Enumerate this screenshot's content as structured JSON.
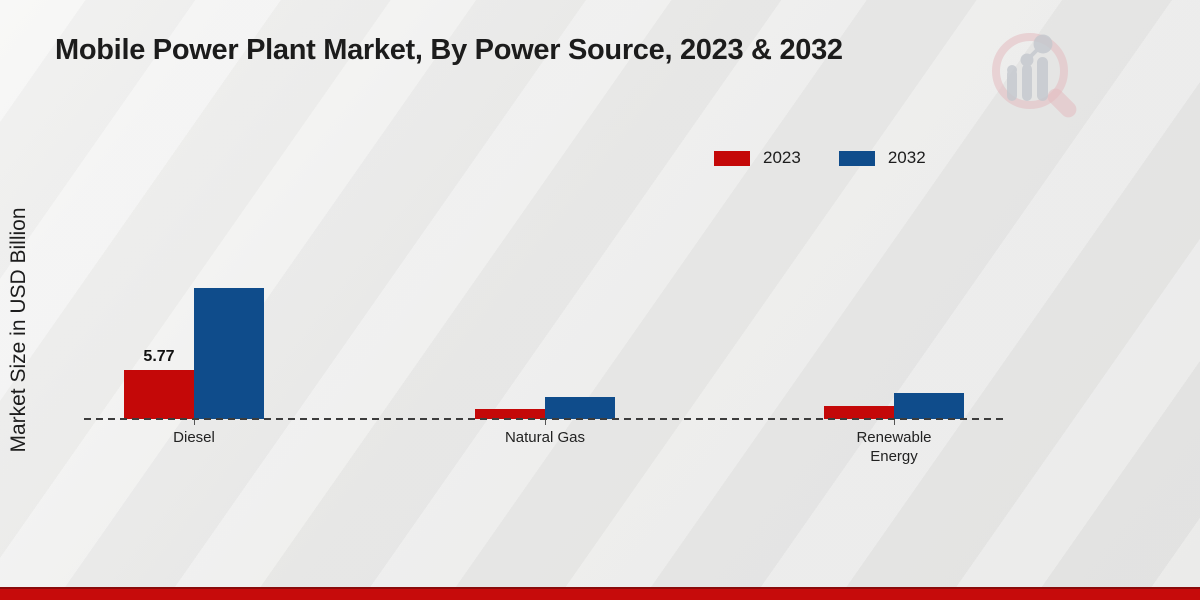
{
  "page": {
    "y_axis_label": "Market Size in USD Billion"
  },
  "watermark": {
    "icon": "magnifier-bar-chart-logo",
    "ring_color": "#e3bcc0",
    "bars_color": "#c4c8ce"
  },
  "footer": {
    "bar_color": "#c60b0b",
    "bar_top_edge_color": "#8a0b0b"
  },
  "chart_data": {
    "type": "bar",
    "title": "Mobile Power Plant Market, By Power Source, 2023 & 2032",
    "ylabel": "Market Size in USD Billion",
    "xlabel": "",
    "categories": [
      "Diesel",
      "Natural Gas",
      "Renewable Energy"
    ],
    "series": [
      {
        "name": "2023",
        "color": "#c40808",
        "values": [
          5.77,
          1.2,
          1.5
        ]
      },
      {
        "name": "2032",
        "color": "#0f4c8b",
        "values": [
          15.4,
          2.6,
          3.1
        ]
      }
    ],
    "annotations": [
      {
        "series": "2023",
        "category": "Diesel",
        "text": "5.77"
      }
    ],
    "ylim": [
      0,
      16
    ],
    "grid": false,
    "baseline_style": "dashed zero line",
    "legend_position": "top-right"
  }
}
